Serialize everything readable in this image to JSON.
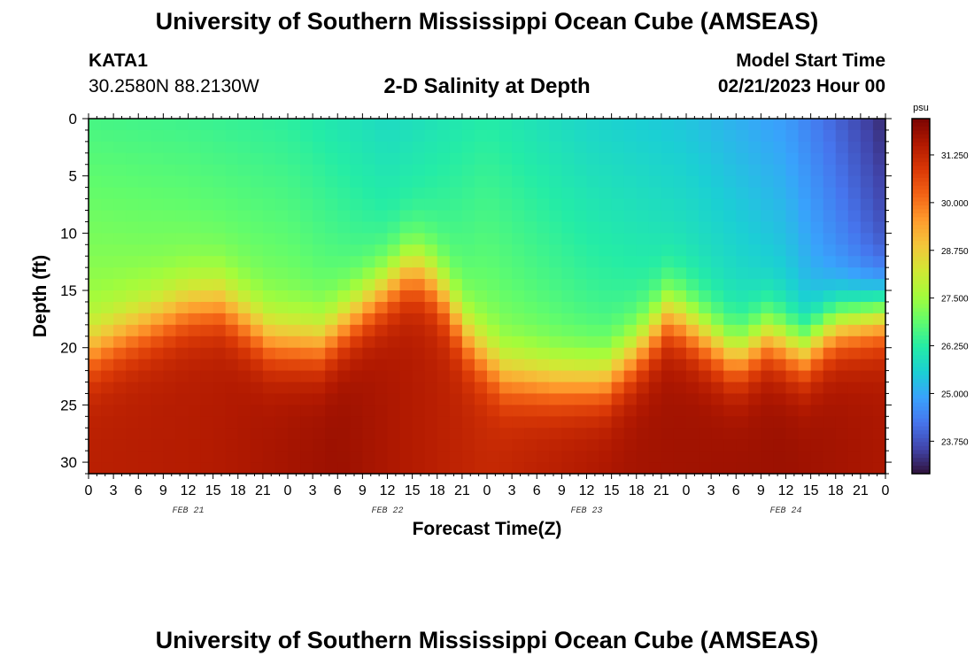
{
  "header": {
    "title": "University of Southern Mississippi Ocean Cube (AMSEAS)",
    "station_id": "KATA1",
    "coordinates": "30.2580N  88.2130W",
    "subtitle": "2-D Salinity at Depth",
    "model_start_label": "Model Start Time",
    "model_start_value": "02/21/2023 Hour 00"
  },
  "footer": {
    "title": "University of Southern Mississippi Ocean Cube (AMSEAS)"
  },
  "chart_data": {
    "type": "heatmap",
    "title": "2-D Salinity at Depth",
    "xlabel": "Forecast Time(Z)",
    "ylabel": "Depth (ft)",
    "x_tick_labels": [
      "0",
      "3",
      "6",
      "9",
      "12",
      "15",
      "18",
      "21",
      "0",
      "3",
      "6",
      "9",
      "12",
      "15",
      "18",
      "21",
      "0",
      "3",
      "6",
      "9",
      "12",
      "15",
      "18",
      "21",
      "0",
      "3",
      "6",
      "9",
      "12",
      "15",
      "18",
      "21",
      "0"
    ],
    "x_range_hours": [
      0,
      96
    ],
    "date_labels": [
      {
        "label": "FEB 21",
        "hour": 12
      },
      {
        "label": "FEB 22",
        "hour": 36
      },
      {
        "label": "FEB 23",
        "hour": 60
      },
      {
        "label": "FEB 24",
        "hour": 84
      }
    ],
    "y_ticks": [
      0,
      5,
      10,
      15,
      20,
      25,
      30
    ],
    "ylim": [
      0,
      31
    ],
    "y_inverted": true,
    "colorbar": {
      "unit": "psu",
      "range": [
        22.9,
        32.2
      ],
      "ticks": [
        "31.250",
        "30.000",
        "28.750",
        "27.500",
        "26.250",
        "25.000",
        "23.750"
      ],
      "colors": [
        "#30123b",
        "#4145ab",
        "#4675ed",
        "#39a2fc",
        "#1bcfd4",
        "#24eca6",
        "#61fc6c",
        "#a4fc3b",
        "#d1e834",
        "#f3c63a",
        "#fe9b2d",
        "#f36315",
        "#d93806",
        "#b11901",
        "#7a0402"
      ]
    },
    "surface_salinity_psu": [
      {
        "hour": 0,
        "value": 26.6
      },
      {
        "hour": 12,
        "value": 26.5
      },
      {
        "hour": 24,
        "value": 26.3
      },
      {
        "hour": 36,
        "value": 25.8
      },
      {
        "hour": 48,
        "value": 26.2
      },
      {
        "hour": 60,
        "value": 25.7
      },
      {
        "hour": 72,
        "value": 25.4
      },
      {
        "hour": 84,
        "value": 24.8
      },
      {
        "hour": 96,
        "value": 23.2
      }
    ],
    "bottom_salinity_psu": [
      {
        "hour": 0,
        "value": 31.4
      },
      {
        "hour": 15,
        "value": 31.5
      },
      {
        "hour": 30,
        "value": 31.8
      },
      {
        "hour": 48,
        "value": 31.2
      },
      {
        "hour": 66,
        "value": 31.7
      },
      {
        "hour": 84,
        "value": 31.8
      },
      {
        "hour": 96,
        "value": 31.6
      }
    ],
    "halocline_depth_ft": [
      {
        "hour": 0,
        "value": 20.5
      },
      {
        "hour": 4,
        "value": 19.0
      },
      {
        "hour": 12,
        "value": 16.5
      },
      {
        "hour": 16,
        "value": 16.2
      },
      {
        "hour": 22,
        "value": 19.5
      },
      {
        "hour": 28,
        "value": 19.8
      },
      {
        "hour": 34,
        "value": 16.0
      },
      {
        "hour": 39,
        "value": 13.0
      },
      {
        "hour": 42,
        "value": 14.5
      },
      {
        "hour": 46,
        "value": 19.5
      },
      {
        "hour": 50,
        "value": 22.5
      },
      {
        "hour": 56,
        "value": 23.0
      },
      {
        "hour": 62,
        "value": 23.0
      },
      {
        "hour": 66,
        "value": 20.5
      },
      {
        "hour": 70,
        "value": 17.0
      },
      {
        "hour": 74,
        "value": 19.0
      },
      {
        "hour": 78,
        "value": 21.0
      },
      {
        "hour": 82,
        "value": 19.0
      },
      {
        "hour": 86,
        "value": 20.5
      },
      {
        "hour": 90,
        "value": 18.0
      },
      {
        "hour": 96,
        "value": 17.0
      }
    ]
  }
}
